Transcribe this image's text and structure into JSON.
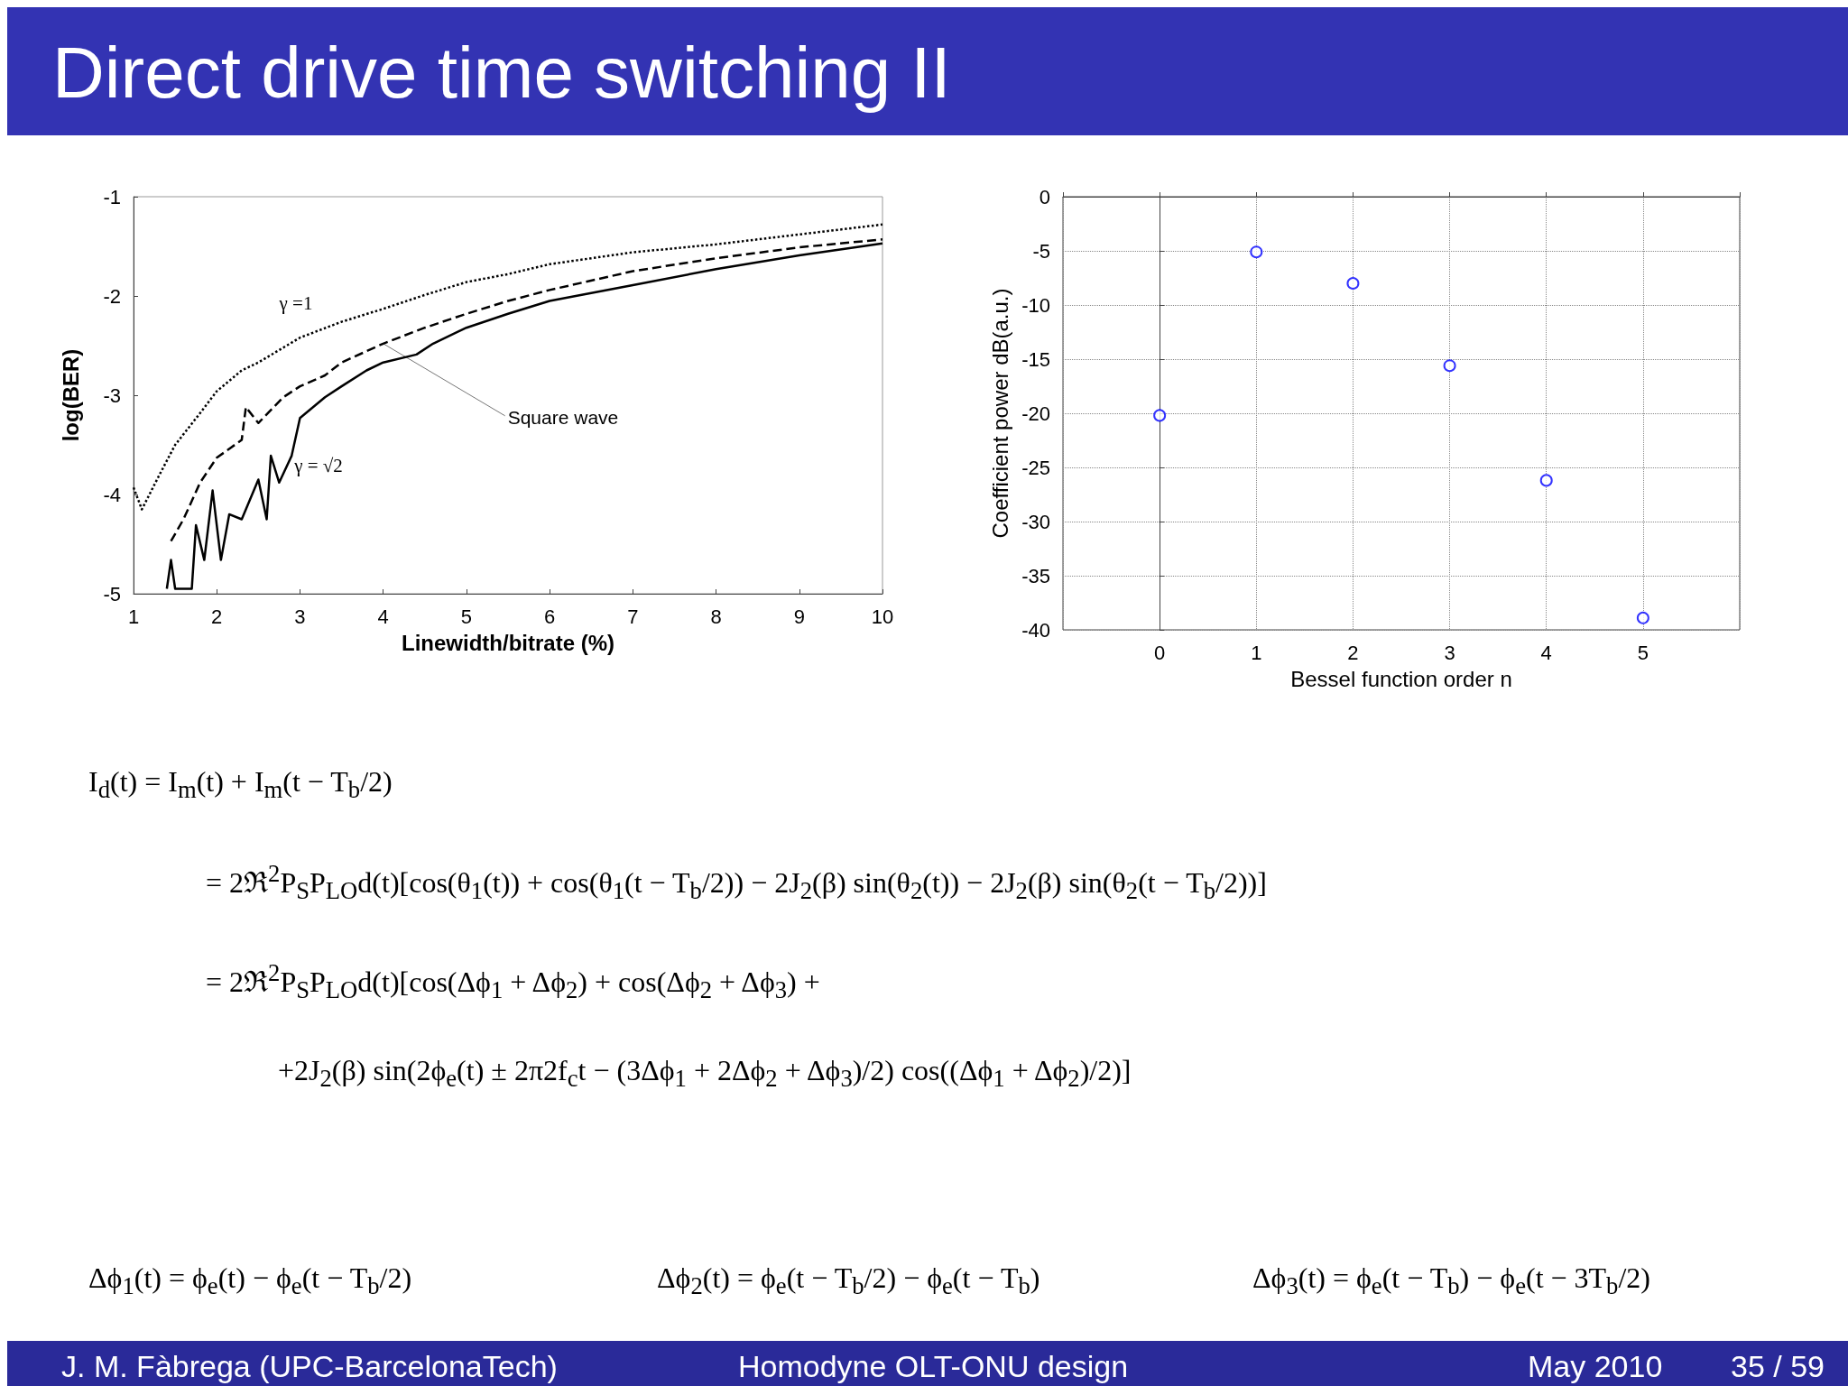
{
  "chart_data": [
    {
      "type": "line",
      "xlabel": "Linewidth/bitrate (%)",
      "ylabel": "log(BER)",
      "xlim": [
        1,
        10
      ],
      "ylim": [
        -5,
        -1
      ],
      "xticks": [
        1,
        2,
        3,
        4,
        5,
        6,
        7,
        8,
        9,
        10
      ],
      "yticks": [
        -1,
        -2,
        -3,
        -4,
        -5
      ],
      "grid": false,
      "marker": "none",
      "series": [
        {
          "color": "#000000",
          "line_style": "dotted",
          "x": [
            1,
            1.1,
            1.3,
            1.5,
            1.8,
            2,
            2.3,
            2.5,
            3,
            3.5,
            4,
            4.5,
            5,
            5.5,
            6,
            7,
            8,
            9,
            10
          ],
          "values": [
            -3.93,
            -4.15,
            -3.82,
            -3.5,
            -3.18,
            -2.96,
            -2.75,
            -2.67,
            -2.42,
            -2.26,
            -2.13,
            -1.99,
            -1.86,
            -1.78,
            -1.68,
            -1.56,
            -1.48,
            -1.38,
            -1.28
          ]
        },
        {
          "color": "#000000",
          "line_style": "dashed",
          "x": [
            1.45,
            1.6,
            1.8,
            2,
            2.3,
            2.35,
            2.5,
            2.8,
            3,
            3.3,
            3.5,
            4,
            4.5,
            5,
            5.5,
            6,
            7,
            8,
            9,
            10
          ],
          "values": [
            -4.47,
            -4.25,
            -3.88,
            -3.63,
            -3.45,
            -3.12,
            -3.28,
            -3.02,
            -2.91,
            -2.8,
            -2.67,
            -2.48,
            -2.32,
            -2.18,
            -2.05,
            -1.94,
            -1.75,
            -1.62,
            -1.51,
            -1.43
          ]
        },
        {
          "color": "#000000",
          "line_style": "solid",
          "x": [
            1.4,
            1.45,
            1.5,
            1.7,
            1.75,
            1.85,
            1.95,
            2.05,
            2.15,
            2.3,
            2.5,
            2.6,
            2.65,
            2.75,
            2.9,
            3,
            3.3,
            3.5,
            3.8,
            4,
            4.4,
            4.6,
            5,
            5.5,
            6,
            7,
            8,
            9,
            10
          ],
          "values": [
            -4.95,
            -4.66,
            -4.95,
            -4.95,
            -4.31,
            -4.66,
            -3.96,
            -4.66,
            -4.2,
            -4.25,
            -3.85,
            -4.25,
            -3.61,
            -3.88,
            -3.61,
            -3.23,
            -3.02,
            -2.91,
            -2.75,
            -2.67,
            -2.59,
            -2.48,
            -2.32,
            -2.18,
            -2.05,
            -1.89,
            -1.73,
            -1.59,
            -1.47
          ]
        }
      ],
      "annotations": [
        "γ =1",
        {
          "text": "Square wave",
          "x": 4,
          "y": -2.48
        },
        "γ = √2"
      ]
    },
    {
      "type": "scatter",
      "xlabel": "Bessel function order n",
      "ylabel": "Coefficient power dB(a.u.)",
      "x": [
        0,
        1,
        2,
        3,
        4,
        5
      ],
      "values": [
        -20.2,
        -5.1,
        -8,
        -15.6,
        -26.2,
        -38.9
      ],
      "color": "#0000ff",
      "marker": "circle",
      "grid": true,
      "xlim": [
        -1,
        6
      ],
      "ylim": [
        -40,
        0
      ],
      "xticks": [
        0,
        1,
        2,
        3,
        4,
        5
      ],
      "yticks": [
        0,
        -5,
        -10,
        -15,
        -20,
        -25,
        -30,
        -35,
        -40
      ]
    },
    {
      "type": "other",
      "title": "Direct drive time switching II",
      "annotations": [
        "I$_{d}$(t) = I$_{m}$(t) + I$_{m}$(t − T$_{b}$/2)",
        "= 2ℜ$^{2}$P$_{S}$P$_{LO}$d(t)[cos(θ$_{1}$(t)) + cos(θ$_{1}$(t − T$_{b}$/2)) − 2J$_{2}$(β) sin(θ$_{2}$(t)) − 2J$_{2}$(β) sin(θ$_{2}$(t − T$_{b}$/2))]",
        "= 2ℜ$^{2}$P$_{S}$P$_{LO}$d(t)[cos(Δϕ$_{1}$ + Δϕ$_{2}$) + cos(Δϕ$_{2}$ + Δϕ$_{3}$) +",
        "+2J$_{2}$(β) sin(2ϕ$_{e}$(t) ± 2π2f$_{c}$t − (3Δϕ$_{1}$ + 2Δϕ$_{2}$ + Δϕ$_{3}$)/2) cos((Δϕ$_{1}$ + Δϕ$_{2}$)/2)]",
        "Δϕ$_{1}$(t) = ϕ$_{e}$(t) − ϕ$_{e}$(t − T$_{b}$/2)",
        "Δϕ$_{2}$(t) = ϕ$_{e}$(t − T$_{b}$/2) − ϕ$_{e}$(t − T$_{b}$)",
        "Δϕ$_{3}$(t) = ϕ$_{e}$(t − T$_{b}$) − ϕ$_{e}$(t − 3T$_{b}$/2)",
        "J. M. Fàbrega  (UPC-BarcelonaTech)",
        "Homodyne OLT-ONU design",
        "May 2010",
        "35 / 59"
      ]
    }
  ]
}
